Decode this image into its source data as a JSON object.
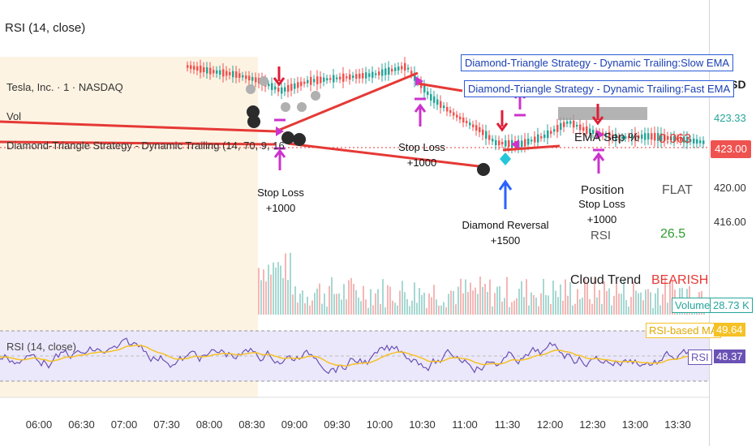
{
  "top_indicator_title": "RSI (14, close)",
  "symbol_legend": "Tesla, Inc. · 1 · NASDAQ",
  "vol_legend": "Vol",
  "strategy_legend": "Diamond-Triangle Strategy - Dynamic Trailing (14, 70, 9, 16",
  "currency": "USD",
  "price_axis": [
    {
      "label": "423.33"
    },
    {
      "label": "420.00"
    },
    {
      "label": "416.00"
    }
  ],
  "price_tags": {
    "last_price": "423.00",
    "volume_label": "Volume",
    "volume_value": "28.73 K",
    "rsi_ma_label": "RSI-based MA",
    "rsi_ma_value": "49.64",
    "rsi_label": "RSI",
    "rsi_value": "48.37"
  },
  "ema_boxes": {
    "slow": "Diamond-Triangle Strategy - Dynamic Trailing:Slow EMA",
    "fast": "Diamond-Triangle Strategy - Dynamic Trailing:Fast EMA"
  },
  "trade_annotations": [
    {
      "line1": "Stop Loss",
      "line2": "+1000"
    },
    {
      "line1": "Stop Loss",
      "line2": "+1000"
    },
    {
      "line1": "Diamond Reversal",
      "line2": "+1500"
    },
    {
      "line1": "Stop Loss",
      "line2": "+1000"
    }
  ],
  "info_table": {
    "ema_sep_label": "EMA Sep %",
    "ema_sep_value": "0.063",
    "position_label": "Position",
    "position_value": "FLAT",
    "rsi_label": "RSI",
    "rsi_value": "26.5",
    "cloud_label": "Cloud Trend",
    "cloud_value": "BEARISH"
  },
  "rsi_pane_title": "RSI (14, close)",
  "time_axis": [
    "06:00",
    "06:30",
    "07:00",
    "07:30",
    "08:00",
    "08:30",
    "09:00",
    "09:30",
    "10:00",
    "10:30",
    "11:00",
    "11:30",
    "12:00",
    "12:30",
    "13:00",
    "13:30"
  ],
  "colors": {
    "premarket_bg": "#fdf3e3",
    "bear_line": "#e53935",
    "bull_candle": "#26a69a",
    "bear_candle": "#ef5350",
    "rsi_line": "#6a52b5",
    "rsi_ma": "#f5c125",
    "rsi_band": "#ece8fb",
    "marker_magenta": "#cc33cc",
    "marker_red": "#e01e37",
    "marker_blue": "#2962ff"
  }
}
